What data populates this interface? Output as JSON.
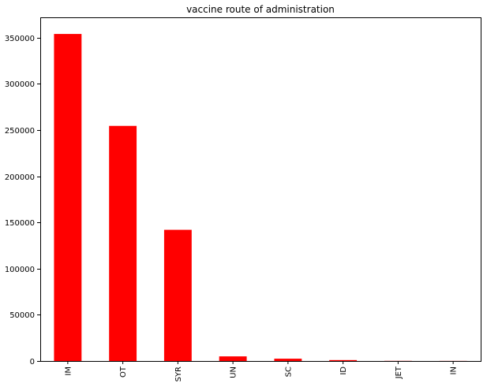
{
  "chart_data": {
    "type": "bar",
    "title": "vaccine route of administration",
    "xlabel": "",
    "ylabel": "",
    "categories": [
      "IM",
      "OT",
      "SYR",
      "UN",
      "SC",
      "ID",
      "JET",
      "IN"
    ],
    "values": [
      354000,
      254500,
      142000,
      5000,
      2500,
      1000,
      150,
      100
    ],
    "ylim": [
      0,
      372000
    ],
    "yticks": [
      0,
      50000,
      100000,
      150000,
      200000,
      250000,
      300000,
      350000
    ],
    "grid": false,
    "bar_color": "#ff0000"
  }
}
